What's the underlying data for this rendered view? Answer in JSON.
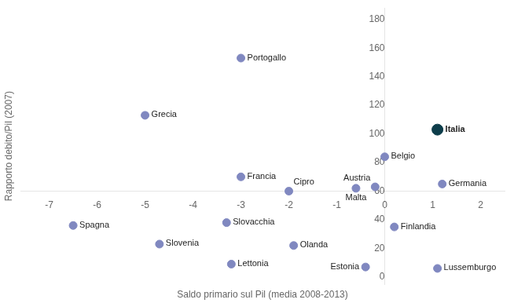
{
  "chart_data": {
    "type": "scatter",
    "xlabel": "Saldo primario sul Pil (media 2008-2013)",
    "ylabel": "Rapporto debito/Pil (2007)",
    "labels": [
      "Italia",
      "Portogallo",
      "Grecia",
      "Belgio",
      "Germania",
      "Austria",
      "Malta",
      "Francia",
      "Cipro",
      "Spagna",
      "Slovacchia",
      "Slovenia",
      "Lettonia",
      "Olanda",
      "Estonia",
      "Finlandia",
      "Lussemburgo"
    ],
    "x": [
      1.1,
      -3.0,
      -5.0,
      0.0,
      1.2,
      -0.2,
      -0.6,
      -3.0,
      -2.0,
      -6.5,
      -3.3,
      -4.7,
      -3.2,
      -1.9,
      -0.4,
      0.2,
      1.1
    ],
    "values": [
      103,
      153,
      113,
      84,
      65,
      63,
      62,
      70,
      60,
      36,
      38,
      23,
      9,
      22,
      7,
      35,
      6
    ],
    "colors": [
      "#0d3d4a",
      "#8088c0",
      "#8088c0",
      "#8088c0",
      "#8088c0",
      "#8088c0",
      "#8088c0",
      "#8088c0",
      "#8088c0",
      "#8088c0",
      "#8088c0",
      "#8088c0",
      "#8088c0",
      "#8088c0",
      "#8088c0",
      "#8088c0",
      "#8088c0"
    ],
    "xlim": [
      -7.6,
      2.5
    ],
    "ylim": [
      -5,
      188
    ],
    "xticks": [
      -7,
      -6,
      -5,
      -4,
      -3,
      -2,
      -1,
      0,
      1,
      2
    ],
    "yticks": [
      0,
      20,
      40,
      60,
      80,
      100,
      120,
      140,
      160,
      180
    ],
    "x_cross": 0,
    "y_cross": 60,
    "grid": false
  }
}
